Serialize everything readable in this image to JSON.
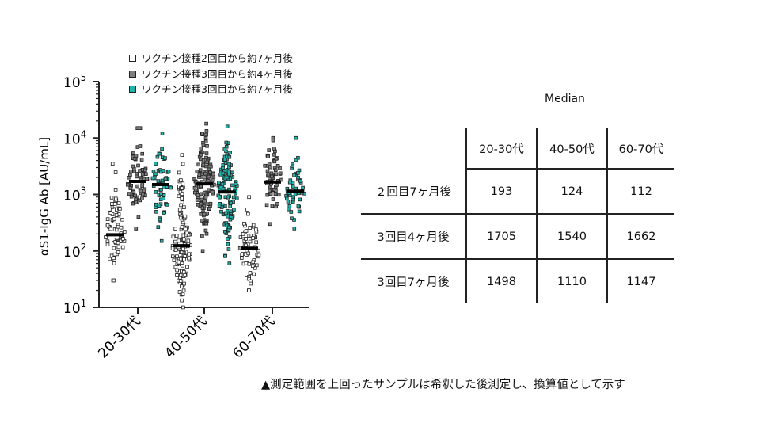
{
  "colors": {
    "white": "#ffffff",
    "gray": "#7f7f7f",
    "teal": "#1fb5ac",
    "stroke": "#222222"
  },
  "legend": [
    {
      "label": "ワクチン接種2回目から約7ヶ月後",
      "color": "#ffffff"
    },
    {
      "label": "ワクチン接種3回目から約4ヶ月後",
      "color": "#7f7f7f"
    },
    {
      "label": "ワクチン接種3回目から約7ヶ月後",
      "color": "#1fb5ac"
    }
  ],
  "chart_data": {
    "type": "scatter",
    "subtype": "dot-plot",
    "ylabel": "αS1-IgG Ab [AU/mL]",
    "yscale": "log",
    "ylim": [
      10,
      100000
    ],
    "yticks": [
      {
        "base": "10",
        "exp": "1"
      },
      {
        "base": "10",
        "exp": "2"
      },
      {
        "base": "10",
        "exp": "3"
      },
      {
        "base": "10",
        "exp": "4"
      },
      {
        "base": "10",
        "exp": "5"
      }
    ],
    "categories": [
      "20-30代",
      "40-50代",
      "60-70代"
    ],
    "series": [
      {
        "name": "ワクチン接種2回目から約7ヶ月後",
        "color": "#ffffff",
        "medians": [
          193,
          124,
          112
        ],
        "ranges": [
          [
            30,
            3500
          ],
          [
            10,
            5000
          ],
          [
            20,
            900
          ]
        ],
        "counts": [
          70,
          140,
          60
        ]
      },
      {
        "name": "ワクチン接種3回目から約4ヶ月後",
        "color": "#7f7f7f",
        "medians": [
          1705,
          1540,
          1662
        ],
        "ranges": [
          [
            250,
            15000
          ],
          [
            100,
            18000
          ],
          [
            300,
            10000
          ]
        ],
        "counts": [
          70,
          140,
          60
        ]
      },
      {
        "name": "ワクチン接種3回目から約7ヶ月後",
        "color": "#1fb5ac",
        "medians": [
          1498,
          1110,
          1147
        ],
        "ranges": [
          [
            150,
            12000
          ],
          [
            60,
            16000
          ],
          [
            250,
            10000
          ]
        ],
        "counts": [
          60,
          130,
          50
        ]
      }
    ]
  },
  "median_table": {
    "title": "Median",
    "columns": [
      "20-30代",
      "40-50代",
      "60-70代"
    ],
    "rows": [
      {
        "label": "２回目7ヶ月後",
        "values": [
          "193",
          "124",
          "112"
        ]
      },
      {
        "label": "3回目4ヶ月後",
        "values": [
          "1705",
          "1540",
          "1662"
        ]
      },
      {
        "label": "3回目7ヶ月後",
        "values": [
          "1498",
          "1110",
          "1147"
        ]
      }
    ]
  },
  "note": "▲測定範囲を上回ったサンプルは希釈した後測定し、換算値として示す"
}
